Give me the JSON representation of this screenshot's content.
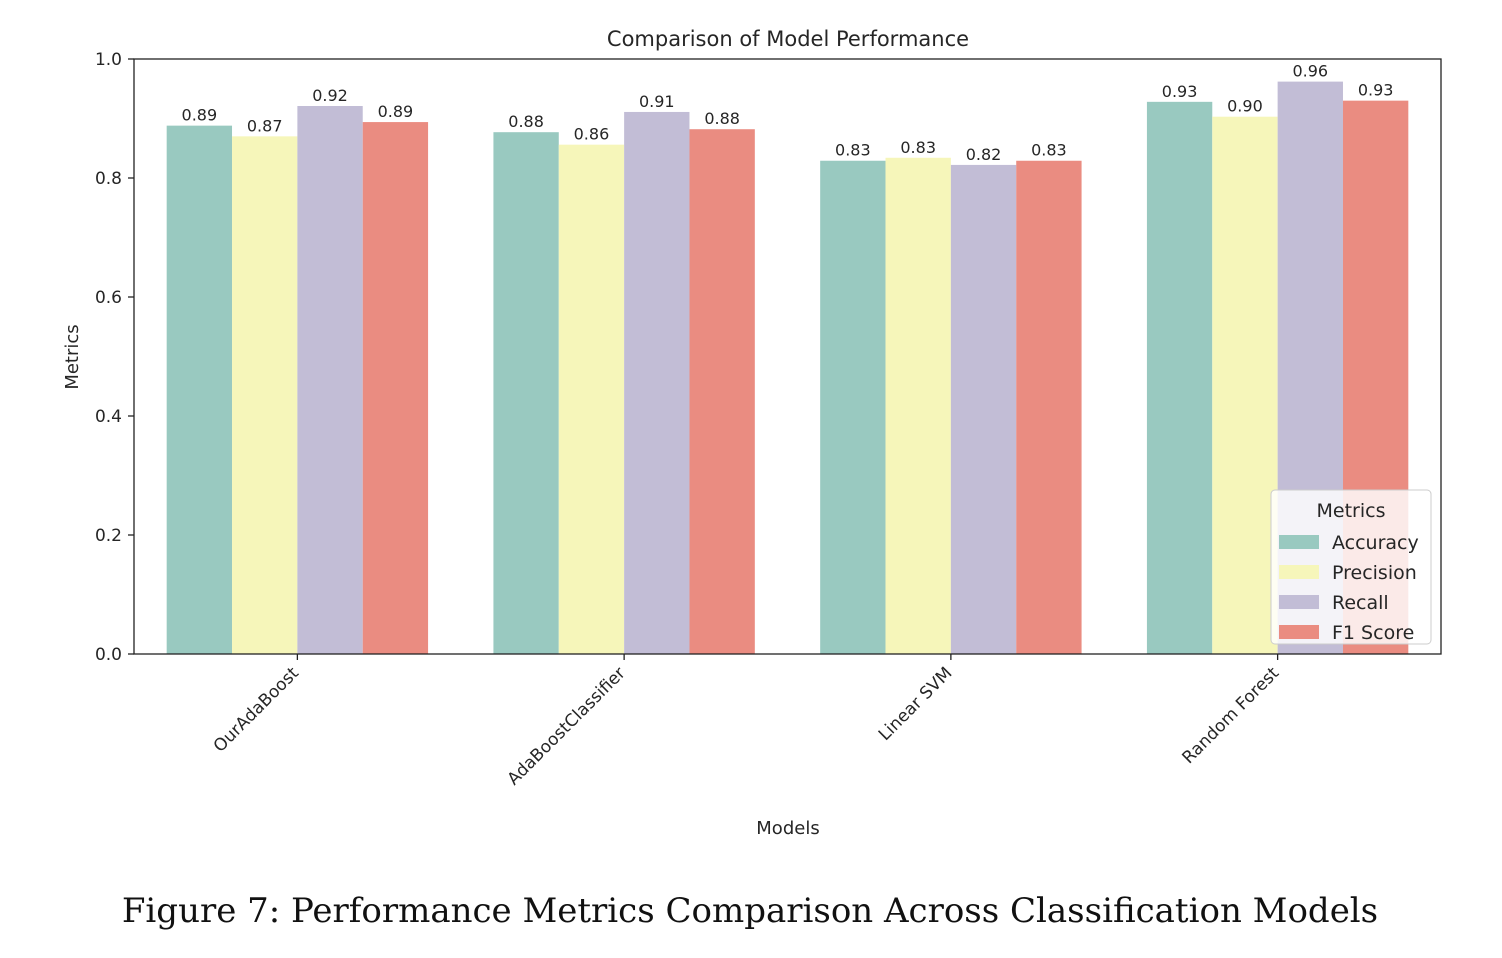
{
  "caption": "Figure 7: Performance Metrics Comparison Across Classification Models",
  "chart_data": {
    "type": "bar",
    "title": "Comparison of Model Performance",
    "xlabel": "Models",
    "ylabel": "Metrics",
    "ylim": [
      0,
      1.0
    ],
    "yticks": [
      0.0,
      0.2,
      0.4,
      0.6,
      0.8,
      1.0
    ],
    "ytick_labels": [
      "0.0",
      "0.2",
      "0.4",
      "0.6",
      "0.8",
      "1.0"
    ],
    "grid": false,
    "categories": [
      "OurAdaBoost",
      "AdaBoostClassifier",
      "Linear SVM",
      "Random Forest"
    ],
    "series": [
      {
        "name": "Accuracy",
        "color": "#99C9C0",
        "values": [
          0.888,
          0.877,
          0.829,
          0.928
        ],
        "labels": [
          "0.89",
          "0.88",
          "0.83",
          "0.93"
        ]
      },
      {
        "name": "Precision",
        "color": "#F6F6BA",
        "values": [
          0.87,
          0.856,
          0.834,
          0.903
        ],
        "labels": [
          "0.87",
          "0.86",
          "0.83",
          "0.90"
        ]
      },
      {
        "name": "Recall",
        "color": "#C2BDD6",
        "values": [
          0.921,
          0.911,
          0.822,
          0.962
        ],
        "labels": [
          "0.92",
          "0.91",
          "0.82",
          "0.96"
        ]
      },
      {
        "name": "F1 Score",
        "color": "#EA8C81",
        "values": [
          0.894,
          0.882,
          0.829,
          0.93
        ],
        "labels": [
          "0.89",
          "0.88",
          "0.83",
          "0.93"
        ]
      }
    ],
    "legend": {
      "title": "Metrics",
      "placement": "lower-right"
    }
  }
}
